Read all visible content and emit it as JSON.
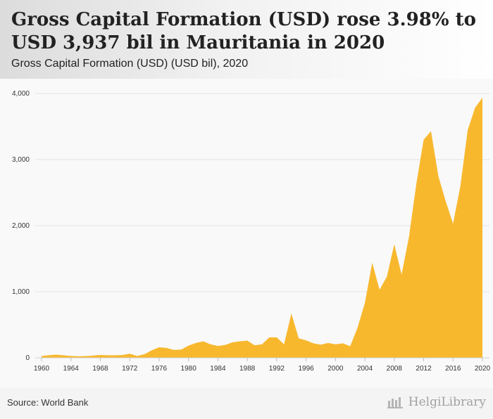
{
  "header": {
    "title": "Gross Capital Formation (USD) rose 3.98% to USD 3,937 bil in Mauritania in 2020",
    "subtitle": "Gross Capital Formation (USD) (USD bil), 2020"
  },
  "footer": {
    "source": "Source: World Bank",
    "brand": "HelgiLibrary"
  },
  "colors": {
    "area_fill": "#f8b82e",
    "grid": "#e2e2e2",
    "axis_text": "#333333"
  },
  "chart_data": {
    "type": "area",
    "x": [
      1960,
      1961,
      1962,
      1963,
      1964,
      1965,
      1966,
      1967,
      1968,
      1969,
      1970,
      1971,
      1972,
      1973,
      1974,
      1975,
      1976,
      1977,
      1978,
      1979,
      1980,
      1981,
      1982,
      1983,
      1984,
      1985,
      1986,
      1987,
      1988,
      1989,
      1990,
      1991,
      1992,
      1993,
      1994,
      1995,
      1996,
      1997,
      1998,
      1999,
      2000,
      2001,
      2002,
      2003,
      2004,
      2005,
      2006,
      2007,
      2008,
      2009,
      2010,
      2011,
      2012,
      2013,
      2014,
      2015,
      2016,
      2017,
      2018,
      2019,
      2020
    ],
    "series": [
      {
        "values": [
          28,
          40,
          48,
          38,
          28,
          24,
          26,
          34,
          44,
          38,
          38,
          42,
          62,
          28,
          55,
          115,
          160,
          150,
          120,
          125,
          185,
          225,
          250,
          205,
          180,
          195,
          235,
          250,
          260,
          190,
          205,
          310,
          310,
          205,
          670,
          295,
          265,
          220,
          200,
          225,
          205,
          220,
          175,
          455,
          830,
          1440,
          1030,
          1230,
          1720,
          1260,
          1830,
          2630,
          3300,
          3430,
          2750,
          2370,
          2030,
          2600,
          3450,
          3785,
          3937
        ]
      }
    ],
    "x_ticks": [
      1960,
      1964,
      1968,
      1972,
      1976,
      1980,
      1984,
      1988,
      1992,
      1996,
      2000,
      2004,
      2008,
      2012,
      2016,
      2020
    ],
    "y_ticks": [
      0,
      1000,
      2000,
      3000,
      4000
    ],
    "y_tick_labels": [
      "0",
      "1,000",
      "2,000",
      "3,000",
      "4,000"
    ],
    "ylim": [
      0,
      4000
    ],
    "xlim": [
      1960,
      2020
    ],
    "grid": true
  }
}
